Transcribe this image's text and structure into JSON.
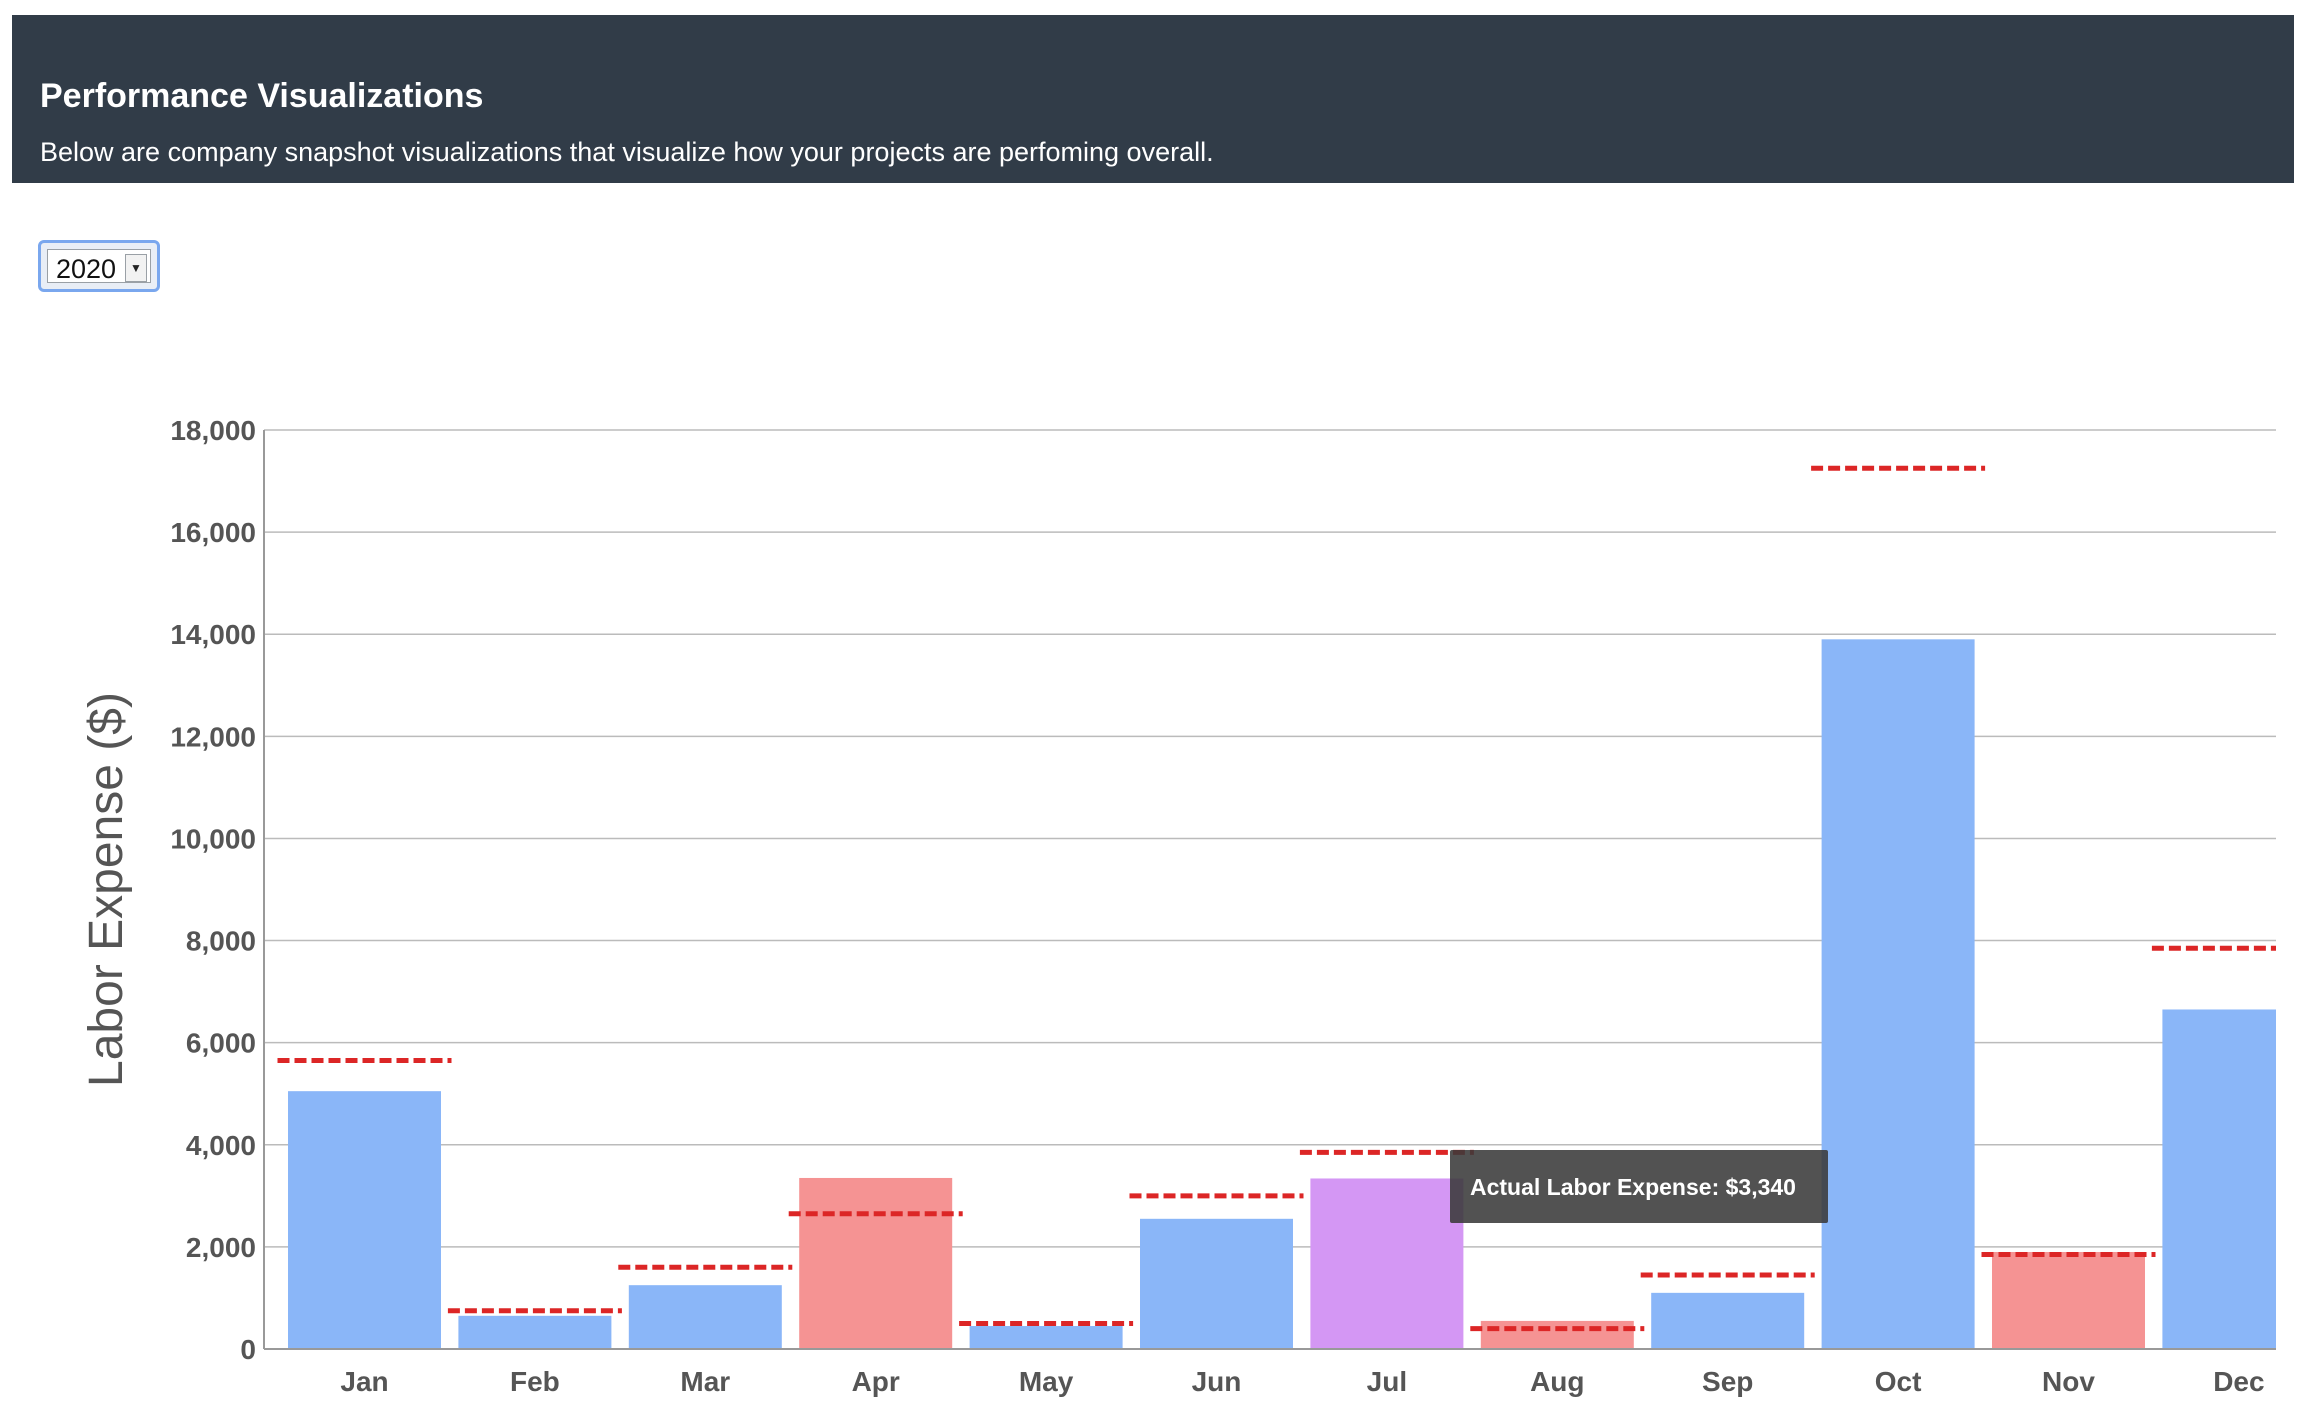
{
  "header": {
    "title": "Performance Visualizations",
    "subtitle": "Below are company snapshot visualizations that visualize how your projects are perfoming overall."
  },
  "year_select": {
    "value": "2020"
  },
  "tooltip": {
    "text": "Actual Labor Expense: $3,340"
  },
  "colors": {
    "under": "#8ab6f8",
    "over": "#f59393",
    "highlight": "#d497f4",
    "target_line": "#dc2626",
    "grid": "#bbbbbb"
  },
  "chart_data": {
    "type": "bar",
    "categories": [
      "Jan",
      "Feb",
      "Mar",
      "Apr",
      "May",
      "Jun",
      "Jul",
      "Aug",
      "Sep",
      "Oct",
      "Nov",
      "Dec"
    ],
    "series": [
      {
        "values": [
          5050,
          650,
          1250,
          3350,
          450,
          2550,
          3340,
          550,
          1100,
          13900,
          1900,
          6650
        ]
      },
      {
        "values": [
          5650,
          750,
          1600,
          2650,
          500,
          3000,
          3850,
          400,
          1450,
          17250,
          1850,
          7850
        ]
      }
    ],
    "bar_status": [
      "under",
      "under",
      "under",
      "over",
      "under",
      "under",
      "highlight",
      "over",
      "under",
      "under",
      "over",
      "under"
    ],
    "ylabel": "Labor Expense ($)",
    "yticks": [
      "0",
      "2,000",
      "4,000",
      "6,000",
      "8,000",
      "10,000",
      "12,000",
      "14,000",
      "16,000",
      "18,000"
    ],
    "ylim": [
      0,
      18000
    ],
    "grid": true
  }
}
